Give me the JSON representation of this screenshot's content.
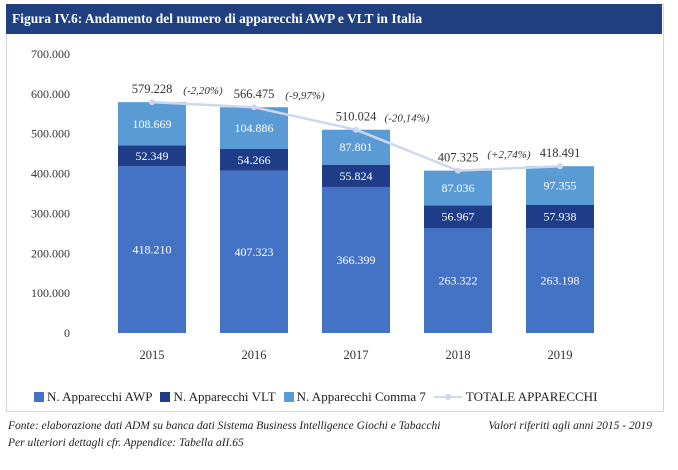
{
  "figure": {
    "title": "Figura IV.6: Andamento del numero di apparecchi AWP e VLT in Italia"
  },
  "footer": {
    "source": "Fonte: elaborazione dati ADM su banca dati Sistema Business Intelligence Giochi e Tabacchi",
    "note": "Valori riferiti agli anni 2015 - 2019",
    "details": "Per ulteriori dettagli cfr. Appendice: Tabella aII.65"
  },
  "colors": {
    "header_bg": "#1f3f7f",
    "awp": "#4472c4",
    "vlt": "#1f3c88",
    "comma7": "#5b9bd5",
    "total": "#cdd8ee"
  },
  "chart_data": {
    "type": "bar",
    "stacked": true,
    "categories": [
      "2015",
      "2016",
      "2017",
      "2018",
      "2019"
    ],
    "series": [
      {
        "name": "N. Apparecchi AWP",
        "values": [
          418210,
          407323,
          366399,
          263322,
          263198
        ],
        "labels": [
          "418.210",
          "407.323",
          "366.399",
          "263.322",
          "263.198"
        ]
      },
      {
        "name": "N. Apparecchi VLT",
        "values": [
          52349,
          54266,
          55824,
          56967,
          57938
        ],
        "labels": [
          "52.349",
          "54.266",
          "55.824",
          "56.967",
          "57.938"
        ]
      },
      {
        "name": "N. Apparecchi Comma 7",
        "values": [
          108669,
          104886,
          87801,
          87036,
          97355
        ],
        "labels": [
          "108.669",
          "104.886",
          "87.801",
          "87.036",
          "97.355"
        ]
      }
    ],
    "total": {
      "name": "TOTALE APPARECCHI",
      "type": "line",
      "values": [
        579228,
        566475,
        510024,
        407325,
        418491
      ],
      "labels": [
        "579.228",
        "566.475",
        "510.024",
        "407.325",
        "418.491"
      ]
    },
    "changes": [
      "(-2,20%)",
      "(-9,97%)",
      "(-20,14%)",
      "(+2,74%)"
    ],
    "yticks": [
      "0",
      "100.000",
      "200.000",
      "300.000",
      "400.000",
      "500.000",
      "600.000",
      "700.000"
    ],
    "ylim": [
      0,
      700000
    ],
    "grid": false,
    "legend_position": "bottom"
  }
}
